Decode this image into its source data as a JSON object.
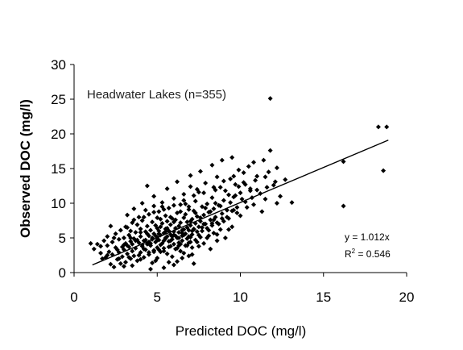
{
  "chart_data": {
    "type": "scatter",
    "title": "",
    "xlabel": "Predicted DOC (mg/l)",
    "ylabel": "Observed DOC (mg/l)",
    "xlim": [
      0,
      20
    ],
    "ylim": [
      0,
      30
    ],
    "xticks": [
      0,
      5,
      10,
      15,
      20
    ],
    "yticks": [
      0,
      5,
      10,
      15,
      20,
      25,
      30
    ],
    "grid": false,
    "annotation": "Headwater Lakes (n=355)",
    "equation": "y = 1.012x",
    "r_squared_prefix": "R",
    "r_squared_exp": "2",
    "r_squared_value": " = 0.546",
    "marker": "diamond",
    "marker_color": "#000000",
    "trendline": {
      "x": [
        1.1,
        18.9
      ],
      "y": [
        1.1,
        19.1
      ]
    },
    "points": [
      [
        1.2,
        3.4
      ],
      [
        1.4,
        4.1
      ],
      [
        1.6,
        3.8
      ],
      [
        1.8,
        4.6
      ],
      [
        1.9,
        2.2
      ],
      [
        2.0,
        5.2
      ],
      [
        2.1,
        3.0
      ],
      [
        2.2,
        1.2
      ],
      [
        2.3,
        2.6
      ],
      [
        2.3,
        4.4
      ],
      [
        2.4,
        0.8
      ],
      [
        2.5,
        3.6
      ],
      [
        2.5,
        5.6
      ],
      [
        2.6,
        1.9
      ],
      [
        2.7,
        2.9
      ],
      [
        2.7,
        4.8
      ],
      [
        2.8,
        6.1
      ],
      [
        2.9,
        2.3
      ],
      [
        3.0,
        3.3
      ],
      [
        3.0,
        5.0
      ],
      [
        3.1,
        1.5
      ],
      [
        3.1,
        4.2
      ],
      [
        3.2,
        2.7
      ],
      [
        3.2,
        6.5
      ],
      [
        3.3,
        3.7
      ],
      [
        3.3,
        5.4
      ],
      [
        3.4,
        2.0
      ],
      [
        3.4,
        4.5
      ],
      [
        3.5,
        1.0
      ],
      [
        3.5,
        3.1
      ],
      [
        3.5,
        7.2
      ],
      [
        3.6,
        4.9
      ],
      [
        3.6,
        2.4
      ],
      [
        3.7,
        5.8
      ],
      [
        3.7,
        3.5
      ],
      [
        3.8,
        6.9
      ],
      [
        3.8,
        1.7
      ],
      [
        3.9,
        4.3
      ],
      [
        3.9,
        8.0
      ],
      [
        4.0,
        2.9
      ],
      [
        4.0,
        5.2
      ],
      [
        4.0,
        6.3
      ],
      [
        4.1,
        3.8
      ],
      [
        4.1,
        7.5
      ],
      [
        4.2,
        4.6
      ],
      [
        4.2,
        2.2
      ],
      [
        4.3,
        5.9
      ],
      [
        4.3,
        9.0
      ],
      [
        4.3,
        3.3
      ],
      [
        4.4,
        6.7
      ],
      [
        4.4,
        4.1
      ],
      [
        4.5,
        5.3
      ],
      [
        4.5,
        2.6
      ],
      [
        4.5,
        8.4
      ],
      [
        4.6,
        3.9
      ],
      [
        4.6,
        6.1
      ],
      [
        4.7,
        4.8
      ],
      [
        4.7,
        7.3
      ],
      [
        4.7,
        1.4
      ],
      [
        4.8,
        5.6
      ],
      [
        4.8,
        3.2
      ],
      [
        4.8,
        9.6
      ],
      [
        4.9,
        4.4
      ],
      [
        4.9,
        6.8
      ],
      [
        5.0,
        5.1
      ],
      [
        5.0,
        3.6
      ],
      [
        5.0,
        7.9
      ],
      [
        5.0,
        2.1
      ],
      [
        5.1,
        6.0
      ],
      [
        5.1,
        4.7
      ],
      [
        5.1,
        8.8
      ],
      [
        5.2,
        5.4
      ],
      [
        5.2,
        3.0
      ],
      [
        5.2,
        6.6
      ],
      [
        5.3,
        4.2
      ],
      [
        5.3,
        7.1
      ],
      [
        5.3,
        10.1
      ],
      [
        5.4,
        5.7
      ],
      [
        5.4,
        3.5
      ],
      [
        5.4,
        0.7
      ],
      [
        5.5,
        6.3
      ],
      [
        5.5,
        4.9
      ],
      [
        5.5,
        8.2
      ],
      [
        5.6,
        5.2
      ],
      [
        5.6,
        2.7
      ],
      [
        5.6,
        7.4
      ],
      [
        5.7,
        4.5
      ],
      [
        5.7,
        6.0
      ],
      [
        5.7,
        9.3
      ],
      [
        5.8,
        5.5
      ],
      [
        5.8,
        3.8
      ],
      [
        5.8,
        6.9
      ],
      [
        5.9,
        4.8
      ],
      [
        5.9,
        7.8
      ],
      [
        5.9,
        2.3
      ],
      [
        6.0,
        5.9
      ],
      [
        6.0,
        4.1
      ],
      [
        6.0,
        10.7
      ],
      [
        6.1,
        6.4
      ],
      [
        6.1,
        3.4
      ],
      [
        6.1,
        7.6
      ],
      [
        6.2,
        5.0
      ],
      [
        6.2,
        8.6
      ],
      [
        6.2,
        1.6
      ],
      [
        6.3,
        5.8
      ],
      [
        6.3,
        4.3
      ],
      [
        6.3,
        6.7
      ],
      [
        6.4,
        7.2
      ],
      [
        6.4,
        3.1
      ],
      [
        6.4,
        9.8
      ],
      [
        6.5,
        5.3
      ],
      [
        6.5,
        6.1
      ],
      [
        6.5,
        4.6
      ],
      [
        6.6,
        7.9
      ],
      [
        6.6,
        2.8
      ],
      [
        6.6,
        11.3
      ],
      [
        6.7,
        5.6
      ],
      [
        6.7,
        8.4
      ],
      [
        6.7,
        3.9
      ],
      [
        6.8,
        6.5
      ],
      [
        6.8,
        4.9
      ],
      [
        6.8,
        7.3
      ],
      [
        6.9,
        5.2
      ],
      [
        6.9,
        9.1
      ],
      [
        6.9,
        2.4
      ],
      [
        7.0,
        6.8
      ],
      [
        7.0,
        4.4
      ],
      [
        7.0,
        12.4
      ],
      [
        7.1,
        7.7
      ],
      [
        7.1,
        5.5
      ],
      [
        7.1,
        3.6
      ],
      [
        7.2,
        8.9
      ],
      [
        7.2,
        6.2
      ],
      [
        7.2,
        1.3
      ],
      [
        7.3,
        7.1
      ],
      [
        7.3,
        4.7
      ],
      [
        7.3,
        10.3
      ],
      [
        7.4,
        5.9
      ],
      [
        7.4,
        8.1
      ],
      [
        7.5,
        6.6
      ],
      [
        7.5,
        3.8
      ],
      [
        7.5,
        11.6
      ],
      [
        7.6,
        7.4
      ],
      [
        7.6,
        5.1
      ],
      [
        7.7,
        9.5
      ],
      [
        7.7,
        6.0
      ],
      [
        7.8,
        8.3
      ],
      [
        7.8,
        4.2
      ],
      [
        7.9,
        7.0
      ],
      [
        7.9,
        12.9
      ],
      [
        8.0,
        6.4
      ],
      [
        8.0,
        9.9
      ],
      [
        8.1,
        5.3
      ],
      [
        8.1,
        8.7
      ],
      [
        8.2,
        7.6
      ],
      [
        8.2,
        3.4
      ],
      [
        8.3,
        10.8
      ],
      [
        8.3,
        6.8
      ],
      [
        8.4,
        9.2
      ],
      [
        8.4,
        5.7
      ],
      [
        8.5,
        8.0
      ],
      [
        8.5,
        11.9
      ],
      [
        8.6,
        7.2
      ],
      [
        8.6,
        4.6
      ],
      [
        8.7,
        9.7
      ],
      [
        8.8,
        6.2
      ],
      [
        8.8,
        12.3
      ],
      [
        8.9,
        8.5
      ],
      [
        9.0,
        7.4
      ],
      [
        9.0,
        10.4
      ],
      [
        9.1,
        5.0
      ],
      [
        9.2,
        9.0
      ],
      [
        9.3,
        11.2
      ],
      [
        9.3,
        7.8
      ],
      [
        9.4,
        13.5
      ],
      [
        9.5,
        8.9
      ],
      [
        9.5,
        6.6
      ],
      [
        9.6,
        10.9
      ],
      [
        9.7,
        12.7
      ],
      [
        9.8,
        9.4
      ],
      [
        9.9,
        14.8
      ],
      [
        10.0,
        11.5
      ],
      [
        10.0,
        8.2
      ],
      [
        10.2,
        13.0
      ],
      [
        10.3,
        10.2
      ],
      [
        10.5,
        15.3
      ],
      [
        10.6,
        12.1
      ],
      [
        10.8,
        9.8
      ],
      [
        11.0,
        13.9
      ],
      [
        11.2,
        11.4
      ],
      [
        11.4,
        16.2
      ],
      [
        11.5,
        10.6
      ],
      [
        11.7,
        14.5
      ],
      [
        11.8,
        17.6
      ],
      [
        11.8,
        25.1
      ],
      [
        12.0,
        12.6
      ],
      [
        12.2,
        15.1
      ],
      [
        12.4,
        11.0
      ],
      [
        12.7,
        13.4
      ],
      [
        13.1,
        10.1
      ],
      [
        16.2,
        16.0
      ],
      [
        16.2,
        9.6
      ],
      [
        18.3,
        21.0
      ],
      [
        18.6,
        14.7
      ],
      [
        18.8,
        21.0
      ],
      [
        3.0,
        0.9
      ],
      [
        4.6,
        0.5
      ],
      [
        2.8,
        1.3
      ],
      [
        6.0,
        1.1
      ],
      [
        1.6,
        2.8
      ],
      [
        2.0,
        3.9
      ],
      [
        2.2,
        6.7
      ],
      [
        3.4,
        6.0
      ],
      [
        3.2,
        8.3
      ],
      [
        4.1,
        10.0
      ],
      [
        4.8,
        11.0
      ],
      [
        5.6,
        12.1
      ],
      [
        6.2,
        13.1
      ],
      [
        7.0,
        14.0
      ],
      [
        7.6,
        14.6
      ],
      [
        8.3,
        15.5
      ],
      [
        8.9,
        16.2
      ],
      [
        9.5,
        16.6
      ],
      [
        1.0,
        4.2
      ],
      [
        1.7,
        2.0
      ],
      [
        2.4,
        5.0
      ],
      [
        3.6,
        9.2
      ],
      [
        4.4,
        12.5
      ],
      [
        5.3,
        9.5
      ],
      [
        6.7,
        9.9
      ],
      [
        7.4,
        12.0
      ],
      [
        8.6,
        13.8
      ],
      [
        9.9,
        12.4
      ],
      [
        10.7,
        10.8
      ],
      [
        11.3,
        8.8
      ],
      [
        12.2,
        10.0
      ],
      [
        3.0,
        4.0
      ],
      [
        3.8,
        4.7
      ],
      [
        4.4,
        5.6
      ],
      [
        5.0,
        6.4
      ],
      [
        5.5,
        5.9
      ],
      [
        6.0,
        7.3
      ],
      [
        6.6,
        5.4
      ],
      [
        7.2,
        6.3
      ],
      [
        7.8,
        7.0
      ],
      [
        8.4,
        7.6
      ],
      [
        4.2,
        3.4
      ],
      [
        4.6,
        4.2
      ],
      [
        5.2,
        4.0
      ],
      [
        5.8,
        4.6
      ],
      [
        6.4,
        4.1
      ],
      [
        7.0,
        5.1
      ],
      [
        3.4,
        5.0
      ],
      [
        4.0,
        5.8
      ],
      [
        4.9,
        5.3
      ],
      [
        5.4,
        4.6
      ],
      [
        5.9,
        5.2
      ],
      [
        6.3,
        5.0
      ],
      [
        6.9,
        6.1
      ],
      [
        7.5,
        5.4
      ],
      [
        8.1,
        6.1
      ],
      [
        8.7,
        7.0
      ],
      [
        9.2,
        8.0
      ],
      [
        9.8,
        8.6
      ],
      [
        2.6,
        3.3
      ],
      [
        3.2,
        3.9
      ],
      [
        3.7,
        4.6
      ],
      [
        4.3,
        4.7
      ],
      [
        4.7,
        5.0
      ],
      [
        5.1,
        5.6
      ],
      [
        5.6,
        6.4
      ],
      [
        6.1,
        5.3
      ],
      [
        6.6,
        6.2
      ],
      [
        7.0,
        7.4
      ],
      [
        7.6,
        7.9
      ],
      [
        8.2,
        8.8
      ],
      [
        8.8,
        9.6
      ],
      [
        9.4,
        10.1
      ],
      [
        10.1,
        10.6
      ],
      [
        10.6,
        11.8
      ],
      [
        2.0,
        2.5
      ],
      [
        2.9,
        3.7
      ],
      [
        3.5,
        4.1
      ],
      [
        4.1,
        4.0
      ],
      [
        4.5,
        4.4
      ],
      [
        5.0,
        4.7
      ],
      [
        5.5,
        5.0
      ],
      [
        6.0,
        5.4
      ],
      [
        6.5,
        5.7
      ],
      [
        7.1,
        6.0
      ],
      [
        7.7,
        6.5
      ],
      [
        8.3,
        7.1
      ],
      [
        8.9,
        7.8
      ],
      [
        9.6,
        9.0
      ],
      [
        10.4,
        9.4
      ],
      [
        11.0,
        11.9
      ],
      [
        11.6,
        12.3
      ],
      [
        12.1,
        13.1
      ],
      [
        5.2,
        7.7
      ],
      [
        5.8,
        8.0
      ],
      [
        6.4,
        8.8
      ],
      [
        6.9,
        9.5
      ],
      [
        7.3,
        8.6
      ],
      [
        7.9,
        9.3
      ],
      [
        8.5,
        10.0
      ],
      [
        9.1,
        11.8
      ],
      [
        9.7,
        11.1
      ],
      [
        10.3,
        12.7
      ],
      [
        10.9,
        13.3
      ],
      [
        11.5,
        13.8
      ],
      [
        4.8,
        3.0
      ],
      [
        5.4,
        3.1
      ],
      [
        6.2,
        3.5
      ],
      [
        6.8,
        3.9
      ],
      [
        7.4,
        4.4
      ],
      [
        8.0,
        5.0
      ],
      [
        8.6,
        5.5
      ],
      [
        9.3,
        6.2
      ],
      [
        2.7,
        2.0
      ],
      [
        3.3,
        2.2
      ],
      [
        3.9,
        2.5
      ],
      [
        4.5,
        2.9
      ],
      [
        5.1,
        3.3
      ],
      [
        5.7,
        3.7
      ],
      [
        6.3,
        3.9
      ],
      [
        6.9,
        4.3
      ],
      [
        3.1,
        6.6
      ],
      [
        3.6,
        7.6
      ],
      [
        4.2,
        8.0
      ],
      [
        4.8,
        8.7
      ],
      [
        5.4,
        9.1
      ],
      [
        6.0,
        9.7
      ],
      [
        6.6,
        10.4
      ],
      [
        7.2,
        11.1
      ],
      [
        7.8,
        11.5
      ],
      [
        8.4,
        12.3
      ],
      [
        9.0,
        13.2
      ],
      [
        9.6,
        13.9
      ],
      [
        10.2,
        14.4
      ],
      [
        10.8,
        15.9
      ],
      [
        4.0,
        1.9
      ],
      [
        4.9,
        1.7
      ],
      [
        5.7,
        1.5
      ],
      [
        6.5,
        2.1
      ],
      [
        7.1,
        2.6
      ]
    ]
  }
}
